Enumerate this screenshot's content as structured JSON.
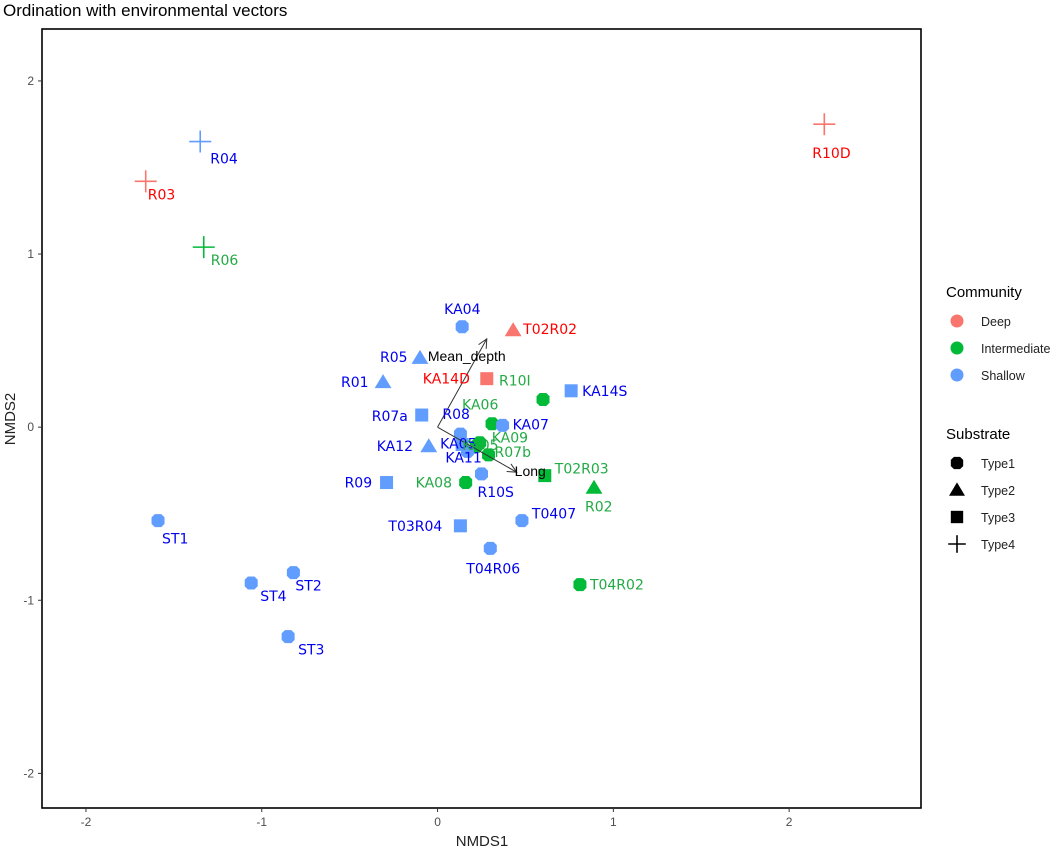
{
  "chart_data": {
    "type": "scatter",
    "title": "Ordination with environmental vectors",
    "xlabel": "NMDS1",
    "ylabel": "NMDS2",
    "xlim": [
      -2.25,
      2.75
    ],
    "ylim": [
      -2.2,
      2.3
    ],
    "xticks": [
      -2,
      -1,
      0,
      1,
      2
    ],
    "yticks": [
      -2,
      -1,
      0,
      1,
      2
    ],
    "grid": false,
    "legend_position": "right",
    "community_colors": {
      "Deep": "#F8766D",
      "Intermediate": "#00BA38",
      "Shallow": "#619CFF"
    },
    "label_colors": {
      "Deep": "#FF0000",
      "Intermediate": "#22AA44",
      "Shallow": "#0000EE"
    },
    "substrate_shapes": {
      "Type1": "circle",
      "Type2": "triangle",
      "Type3": "square",
      "Type4": "plus"
    },
    "legends": [
      {
        "title": "Community",
        "entries": [
          "Deep",
          "Intermediate",
          "Shallow"
        ]
      },
      {
        "title": "Substrate",
        "entries": [
          "Type1",
          "Type2",
          "Type3",
          "Type4"
        ]
      }
    ],
    "vectors": [
      {
        "name": "Mean_depth",
        "x": 0.28,
        "y": 0.51
      },
      {
        "name": "Long",
        "x": 0.45,
        "y": -0.26
      }
    ],
    "points": [
      {
        "label": "R04",
        "x": -1.35,
        "y": 1.65,
        "community": "Shallow",
        "substrate": "Type4",
        "dx": 10,
        "dy": 22
      },
      {
        "label": "R03",
        "x": -1.66,
        "y": 1.42,
        "community": "Deep",
        "substrate": "Type4",
        "dx": 2,
        "dy": 18
      },
      {
        "label": "R06",
        "x": -1.33,
        "y": 1.04,
        "community": "Intermediate",
        "substrate": "Type4",
        "dx": 7,
        "dy": 18
      },
      {
        "label": "R10D",
        "x": 2.2,
        "y": 1.75,
        "community": "Deep",
        "substrate": "Type4",
        "dx": -12,
        "dy": 34
      },
      {
        "label": "KA04",
        "x": 0.14,
        "y": 0.58,
        "community": "Shallow",
        "substrate": "Type1",
        "dx": -18,
        "dy": -13
      },
      {
        "label": "T02R02",
        "x": 0.43,
        "y": 0.56,
        "community": "Deep",
        "substrate": "Type2",
        "dx": 10,
        "dy": 4
      },
      {
        "label": "R05",
        "x": -0.1,
        "y": 0.4,
        "community": "Shallow",
        "substrate": "Type2",
        "dx": -40,
        "dy": 4
      },
      {
        "label": "KA14D",
        "x": 0.28,
        "y": 0.28,
        "community": "Deep",
        "substrate": "Type3",
        "dx": -64,
        "dy": 5
      },
      {
        "label": "R01",
        "x": -0.31,
        "y": 0.26,
        "community": "Shallow",
        "substrate": "Type2",
        "dx": -42,
        "dy": 5
      },
      {
        "label": "R10I",
        "x": 0.6,
        "y": 0.16,
        "community": "Intermediate",
        "substrate": "Type1",
        "dx": -44,
        "dy": -14
      },
      {
        "label": "KA14S",
        "x": 0.76,
        "y": 0.21,
        "community": "Shallow",
        "substrate": "Type3",
        "dx": 11,
        "dy": 5
      },
      {
        "label": "R07a",
        "x": -0.09,
        "y": 0.07,
        "community": "Shallow",
        "substrate": "Type3",
        "dx": -50,
        "dy": 6
      },
      {
        "label": "KA06",
        "x": 0.31,
        "y": 0.02,
        "community": "Intermediate",
        "substrate": "Type1",
        "dx": -30,
        "dy": -14
      },
      {
        "label": "KA07",
        "x": 0.37,
        "y": 0.01,
        "community": "Shallow",
        "substrate": "Type1",
        "dx": 10,
        "dy": 4
      },
      {
        "label": "R08",
        "x": 0.13,
        "y": -0.04,
        "community": "Shallow",
        "substrate": "Type1",
        "dx": -18,
        "dy": -15
      },
      {
        "label": "KA09",
        "x": 0.24,
        "y": -0.09,
        "community": "Intermediate",
        "substrate": "Type1",
        "dx": 12,
        "dy": 0
      },
      {
        "label": "KA12",
        "x": -0.05,
        "y": -0.11,
        "community": "Shallow",
        "substrate": "Type2",
        "dx": -52,
        "dy": 5
      },
      {
        "label": "KA05",
        "x": 0.14,
        "y": -0.1,
        "community": "Shallow",
        "substrate": "Type3",
        "dx": -22,
        "dy": 4
      },
      {
        "label": "KA05",
        "x": 0.22,
        "y": -0.11,
        "community": "Intermediate",
        "substrate": "Type1",
        "dx": -14,
        "dy": 4
      },
      {
        "label": "KA11",
        "x": 0.17,
        "y": -0.14,
        "community": "Shallow",
        "substrate": "Type1",
        "dx": -22,
        "dy": 11
      },
      {
        "label": "R07b",
        "x": 0.29,
        "y": -0.16,
        "community": "Intermediate",
        "substrate": "Type1",
        "dx": 6,
        "dy": 2
      },
      {
        "label": "R09",
        "x": -0.29,
        "y": -0.32,
        "community": "Shallow",
        "substrate": "Type3",
        "dx": -42,
        "dy": 5
      },
      {
        "label": "KA08",
        "x": 0.16,
        "y": -0.32,
        "community": "Intermediate",
        "substrate": "Type1",
        "dx": -50,
        "dy": 5
      },
      {
        "label": "R10S",
        "x": 0.25,
        "y": -0.27,
        "community": "Shallow",
        "substrate": "Type1",
        "dx": -4,
        "dy": 23
      },
      {
        "label": "T02R03",
        "x": 0.61,
        "y": -0.28,
        "community": "Intermediate",
        "substrate": "Type3",
        "dx": 10,
        "dy": -2
      },
      {
        "label": "R02",
        "x": 0.89,
        "y": -0.35,
        "community": "Intermediate",
        "substrate": "Type2",
        "dx": -9,
        "dy": 24
      },
      {
        "label": "T03R04",
        "x": 0.13,
        "y": -0.57,
        "community": "Shallow",
        "substrate": "Type3",
        "dx": -72,
        "dy": 5
      },
      {
        "label": "T0407",
        "x": 0.48,
        "y": -0.54,
        "community": "Shallow",
        "substrate": "Type1",
        "dx": 10,
        "dy": -2
      },
      {
        "label": "T04R06",
        "x": 0.3,
        "y": -0.7,
        "community": "Shallow",
        "substrate": "Type1",
        "dx": -24,
        "dy": 25
      },
      {
        "label": "T04R02",
        "x": 0.81,
        "y": -0.91,
        "community": "Intermediate",
        "substrate": "Type1",
        "dx": 10,
        "dy": 5
      },
      {
        "label": "ST1",
        "x": -1.59,
        "y": -0.54,
        "community": "Shallow",
        "substrate": "Type1",
        "dx": 4,
        "dy": 23
      },
      {
        "label": "ST2",
        "x": -0.82,
        "y": -0.84,
        "community": "Shallow",
        "substrate": "Type1",
        "dx": 2,
        "dy": 18
      },
      {
        "label": "ST4",
        "x": -1.06,
        "y": -0.9,
        "community": "Shallow",
        "substrate": "Type1",
        "dx": 9,
        "dy": 18
      },
      {
        "label": "ST3",
        "x": -0.85,
        "y": -1.21,
        "community": "Shallow",
        "substrate": "Type1",
        "dx": 10,
        "dy": 18
      }
    ]
  }
}
